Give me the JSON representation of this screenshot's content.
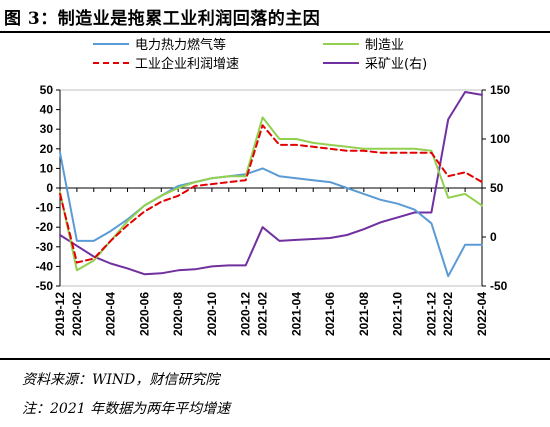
{
  "title": "图 3：制造业是拖累工业利润回落的主因",
  "source": "资料来源：WIND，财信研究院",
  "footnote": "注：2021 年数据为两年平均增速",
  "colors": {
    "power": "#5b9bd5",
    "manufacturing": "#92d050",
    "industry_profit": "#e30000",
    "mining": "#7030a0"
  },
  "chart_data": {
    "type": "line",
    "x": [
      "2019-12",
      "2020-02",
      "2020-03",
      "2020-04",
      "2020-05",
      "2020-06",
      "2020-07",
      "2020-08",
      "2020-09",
      "2020-10",
      "2020-11",
      "2020-12",
      "2021-02",
      "2021-03",
      "2021-04",
      "2021-05",
      "2021-06",
      "2021-07",
      "2021-08",
      "2021-09",
      "2021-10",
      "2021-11",
      "2021-12",
      "2022-02",
      "2022-03",
      "2022-04"
    ],
    "xticks": [
      "2019-12",
      "2020-02",
      "2020-04",
      "2020-06",
      "2020-08",
      "2020-10",
      "2020-12",
      "2021-02",
      "2021-04",
      "2021-06",
      "2021-08",
      "2021-10",
      "2021-12",
      "2022-02",
      "2022-04"
    ],
    "ylim_left": [
      -50,
      50
    ],
    "yticks_left": [
      -50,
      -40,
      -30,
      -20,
      -10,
      0,
      10,
      20,
      30,
      40,
      50
    ],
    "ylim_right": [
      -50,
      150
    ],
    "yticks_right": [
      -50,
      0,
      50,
      100,
      150
    ],
    "legend": "top, two columns",
    "series": [
      {
        "name": "电力热力燃气等",
        "axis": "left",
        "style": "solid",
        "colorKey": "power",
        "values": [
          18,
          -27,
          -27,
          -22,
          -16,
          -9,
          -4,
          1,
          3,
          5,
          6,
          7,
          10,
          6,
          5,
          4,
          3,
          0,
          -3,
          -6,
          -8,
          -11,
          -18,
          -45,
          -29,
          -29
        ]
      },
      {
        "name": "制造业",
        "axis": "left",
        "style": "solid",
        "colorKey": "manufacturing",
        "values": [
          -2,
          -42,
          -37,
          -27,
          -17,
          -9,
          -4,
          0,
          3,
          5,
          6,
          6,
          36,
          25,
          25,
          23,
          22,
          21,
          20,
          20,
          20,
          20,
          19,
          -5,
          -3,
          -9
        ]
      },
      {
        "name": "工业企业利润增速",
        "axis": "left",
        "style": "dashed",
        "colorKey": "industry_profit",
        "values": [
          -3,
          -38,
          -36,
          -27,
          -19,
          -12,
          -7,
          -4,
          1,
          2,
          3,
          4,
          32,
          22,
          22,
          21,
          20,
          19,
          19,
          18,
          18,
          18,
          18,
          6,
          8,
          3
        ]
      },
      {
        "name": "采矿业(右)",
        "axis": "right",
        "style": "solid",
        "colorKey": "mining",
        "values": [
          2,
          -9,
          -20,
          -27,
          -32,
          -38,
          -37,
          -34,
          -33,
          -30,
          -29,
          -29,
          10,
          -4,
          -3,
          -2,
          -1,
          2,
          8,
          15,
          20,
          25,
          25,
          120,
          148,
          145
        ]
      }
    ]
  }
}
